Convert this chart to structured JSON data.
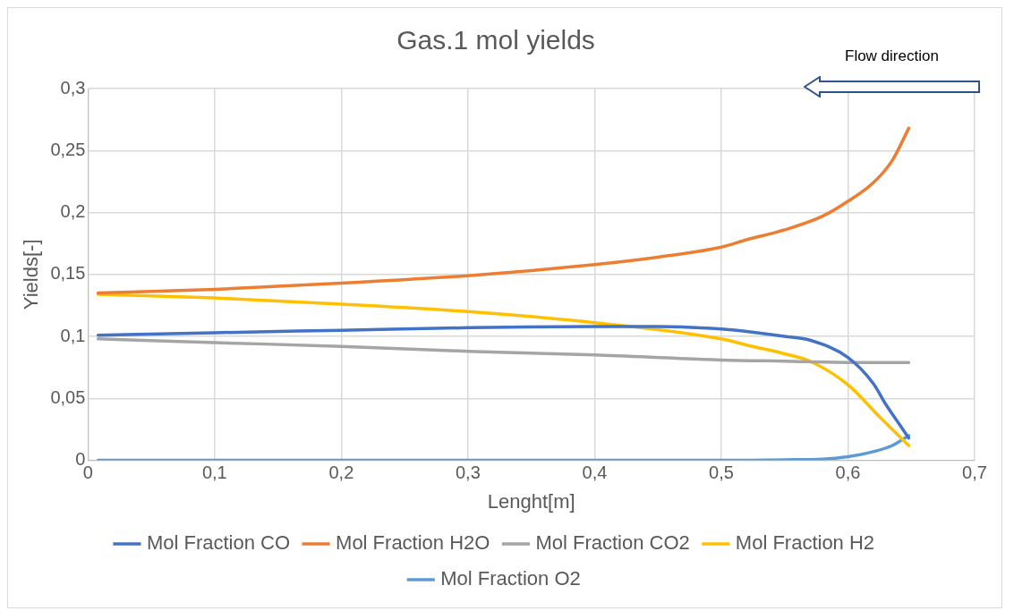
{
  "chart_data": {
    "type": "line",
    "title": "Gas.1 mol yields",
    "xlabel": "Lenght[m]",
    "ylabel": "Yields[-]",
    "annotations": [
      "Flow direction"
    ],
    "xlim": [
      0,
      0.7
    ],
    "xticks": [
      0,
      {
        "value": 0.1,
        "label": "0,1"
      },
      {
        "value": 0.2,
        "label": "0,2"
      },
      {
        "value": 0.3,
        "label": "0,3"
      },
      {
        "value": 0.4,
        "label": "0,4"
      },
      {
        "value": 0.5,
        "label": "0,5"
      },
      {
        "value": 0.6,
        "label": "0,6"
      },
      {
        "value": 0.7,
        "label": "0,7"
      }
    ],
    "ylim": [
      0,
      0.3
    ],
    "yticks": [
      0,
      {
        "value": 0.05,
        "label": "0,05"
      },
      {
        "value": 0.1,
        "label": "0,1"
      },
      {
        "value": 0.15,
        "label": "0,15"
      },
      {
        "value": 0.2,
        "label": "0,2"
      },
      {
        "value": 0.25,
        "label": "0,25"
      },
      {
        "value": 0.3,
        "label": "0,3"
      }
    ],
    "grid": true,
    "legend": "bottom",
    "marker": "none",
    "line_style": "solid",
    "series": [
      {
        "name": "Mol Fraction CO",
        "color": "#4472c4",
        "x": [
          0.008,
          0.1,
          0.2,
          0.3,
          0.4,
          0.45,
          0.5,
          0.52,
          0.55,
          0.57,
          0.6,
          0.62,
          0.63,
          0.64,
          0.648
        ],
        "values": [
          0.101,
          0.103,
          0.105,
          0.107,
          0.108,
          0.108,
          0.106,
          0.104,
          0.1,
          0.097,
          0.083,
          0.062,
          0.045,
          0.03,
          0.018
        ]
      },
      {
        "name": "Mol Fraction H2O",
        "color": "#ed7d31",
        "x": [
          0.008,
          0.1,
          0.2,
          0.3,
          0.4,
          0.45,
          0.5,
          0.52,
          0.55,
          0.58,
          0.6,
          0.62,
          0.635,
          0.648
        ],
        "values": [
          0.135,
          0.138,
          0.143,
          0.149,
          0.158,
          0.164,
          0.172,
          0.178,
          0.186,
          0.197,
          0.209,
          0.224,
          0.242,
          0.268
        ]
      },
      {
        "name": "Mol Fraction CO2",
        "color": "#a5a5a5",
        "x": [
          0.008,
          0.1,
          0.2,
          0.3,
          0.4,
          0.5,
          0.55,
          0.6,
          0.648
        ],
        "values": [
          0.098,
          0.095,
          0.092,
          0.088,
          0.085,
          0.081,
          0.08,
          0.079,
          0.079
        ]
      },
      {
        "name": "Mol Fraction H2",
        "color": "#ffc000",
        "x": [
          0.008,
          0.1,
          0.2,
          0.3,
          0.4,
          0.5,
          0.52,
          0.55,
          0.57,
          0.6,
          0.625,
          0.64,
          0.648
        ],
        "values": [
          0.134,
          0.131,
          0.126,
          0.12,
          0.111,
          0.098,
          0.093,
          0.086,
          0.08,
          0.061,
          0.035,
          0.02,
          0.012
        ]
      },
      {
        "name": "Mol Fraction O2",
        "color": "#5b9bd5",
        "x": [
          0.008,
          0.2,
          0.4,
          0.5,
          0.55,
          0.58,
          0.6,
          0.62,
          0.635,
          0.648
        ],
        "values": [
          0,
          0,
          0,
          0,
          0.0005,
          0.001,
          0.003,
          0.007,
          0.012,
          0.02
        ]
      }
    ]
  }
}
